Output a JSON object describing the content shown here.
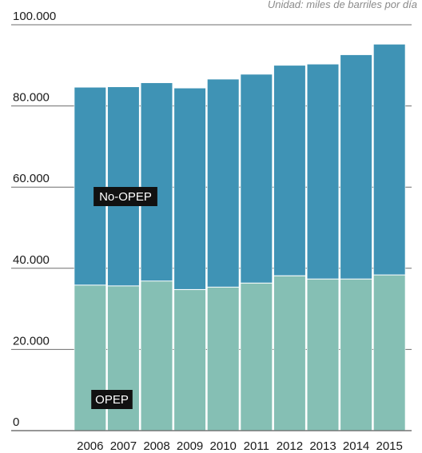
{
  "unit_note": "Unidad: miles de barriles por día",
  "chart_data": {
    "type": "bar",
    "stacked": true,
    "categories": [
      "2006",
      "2007",
      "2008",
      "2009",
      "2010",
      "2011",
      "2012",
      "2013",
      "2014",
      "2015"
    ],
    "series": [
      {
        "name": "OPEP",
        "color": "#85bfb4",
        "values": [
          35900,
          35700,
          36900,
          34800,
          35400,
          36400,
          38200,
          37400,
          37400,
          38400
        ]
      },
      {
        "name": "No-OPEP",
        "color": "#3f93b5",
        "values": [
          48700,
          49000,
          48800,
          49600,
          51200,
          51400,
          51800,
          52900,
          55200,
          56800
        ]
      }
    ],
    "y_ticks": [
      "0",
      "20.000",
      "40.000",
      "60.000",
      "80.000",
      "100.000"
    ],
    "ylim": [
      0,
      100000
    ],
    "grid": true,
    "title": "",
    "xlabel": "",
    "ylabel": ""
  }
}
